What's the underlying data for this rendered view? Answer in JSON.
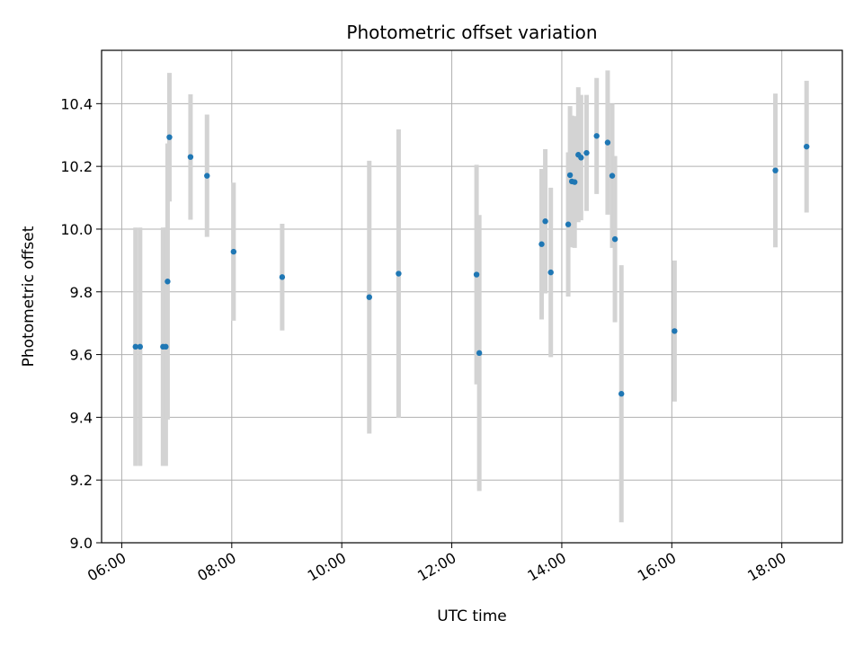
{
  "chart_data": {
    "type": "scatter",
    "title": "Photometric offset variation",
    "xlabel": "UTC time",
    "ylabel": "Photometric offset",
    "x_axis_kind": "time-of-day (HH:MM, UTC)",
    "xlim": [
      "05:38",
      "19:06"
    ],
    "ylim": [
      9.0,
      10.57
    ],
    "x_ticks": [
      "06:00",
      "08:00",
      "10:00",
      "12:00",
      "14:00",
      "16:00",
      "18:00"
    ],
    "y_ticks": [
      9.0,
      9.2,
      9.4,
      9.6,
      9.8,
      10.0,
      10.2,
      10.4
    ],
    "grid": true,
    "legend": "none",
    "point_color": "#1f77b4",
    "errorbar_color": "#d3d3d3",
    "points": [
      {
        "x": "06:15",
        "y": 9.625,
        "err": 0.38
      },
      {
        "x": "06:20",
        "y": 9.625,
        "err": 0.38
      },
      {
        "x": "06:45",
        "y": 9.625,
        "err": 0.38
      },
      {
        "x": "06:48",
        "y": 9.625,
        "err": 0.38
      },
      {
        "x": "06:50",
        "y": 9.833,
        "err": 0.44
      },
      {
        "x": "06:52",
        "y": 10.293,
        "err": 0.205
      },
      {
        "x": "07:15",
        "y": 10.23,
        "err": 0.2
      },
      {
        "x": "07:33",
        "y": 10.17,
        "err": 0.195
      },
      {
        "x": "08:02",
        "y": 9.928,
        "err": 0.22
      },
      {
        "x": "08:55",
        "y": 9.847,
        "err": 0.17
      },
      {
        "x": "10:30",
        "y": 9.783,
        "err": 0.435
      },
      {
        "x": "11:02",
        "y": 9.858,
        "err": 0.46
      },
      {
        "x": "12:27",
        "y": 9.855,
        "err": 0.35
      },
      {
        "x": "12:30",
        "y": 9.605,
        "err": 0.44
      },
      {
        "x": "13:38",
        "y": 9.952,
        "err": 0.24
      },
      {
        "x": "13:42",
        "y": 10.025,
        "err": 0.23
      },
      {
        "x": "13:48",
        "y": 9.862,
        "err": 0.27
      },
      {
        "x": "14:07",
        "y": 10.015,
        "err": 0.23
      },
      {
        "x": "14:09",
        "y": 10.172,
        "err": 0.22
      },
      {
        "x": "14:11",
        "y": 10.152,
        "err": 0.21
      },
      {
        "x": "14:14",
        "y": 10.15,
        "err": 0.21
      },
      {
        "x": "14:18",
        "y": 10.237,
        "err": 0.215
      },
      {
        "x": "14:21",
        "y": 10.228,
        "err": 0.2
      },
      {
        "x": "14:27",
        "y": 10.243,
        "err": 0.185
      },
      {
        "x": "14:38",
        "y": 10.297,
        "err": 0.185
      },
      {
        "x": "14:50",
        "y": 10.276,
        "err": 0.23
      },
      {
        "x": "14:55",
        "y": 10.17,
        "err": 0.23
      },
      {
        "x": "14:58",
        "y": 9.968,
        "err": 0.265
      },
      {
        "x": "15:05",
        "y": 9.475,
        "err": 0.41
      },
      {
        "x": "16:03",
        "y": 9.675,
        "err": 0.225
      },
      {
        "x": "17:53",
        "y": 10.187,
        "err": 0.245
      },
      {
        "x": "18:27",
        "y": 10.263,
        "err": 0.21
      }
    ]
  }
}
